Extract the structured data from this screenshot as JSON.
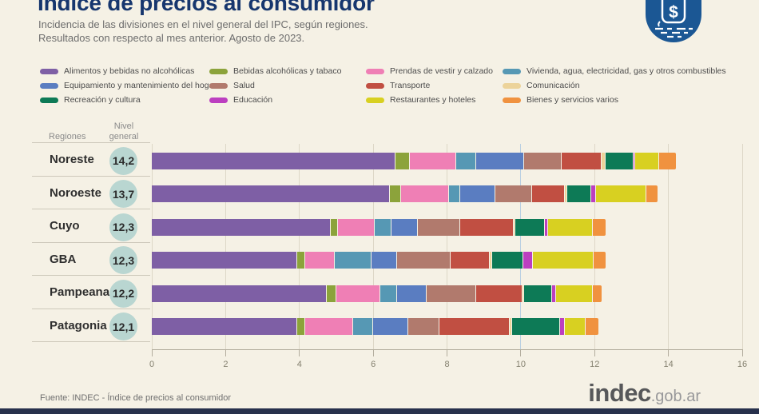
{
  "header": {
    "title": "Índice de precios al consumidor",
    "subtitle_line1": "Incidencia de las divisiones en el nivel general del IPC, según regiones.",
    "subtitle_line2": "Resultados con respecto al mes anterior. Agosto de 2023.",
    "badge_icon": "peso-sign-badge",
    "badge_color": "#1b5794"
  },
  "chart_data": {
    "type": "stacked-bar-horizontal",
    "title": "Incidencia de las divisiones en el nivel general del IPC, según regiones",
    "x_axis": {
      "ticks": [
        0,
        2,
        4,
        6,
        8,
        10,
        12,
        14,
        16
      ],
      "max": 16,
      "grid": true
    },
    "column_headers": {
      "regiones": "Regiones",
      "nivel_general": "Nivel general"
    },
    "divisions": [
      {
        "key": "alimentos",
        "label": "Alimentos y bebidas no alcohólicas",
        "color": "#7e5fa5"
      },
      {
        "key": "bebidas-alcoholicas",
        "label": "Bebidas alcohólicas y tabaco",
        "color": "#8ca33b"
      },
      {
        "key": "prendas",
        "label": "Prendas de vestir y calzado",
        "color": "#ef7fb5"
      },
      {
        "key": "vivienda",
        "label": "Vivienda, agua, electricidad, gas y otros combustibles",
        "color": "#5698b4"
      },
      {
        "key": "equipamiento",
        "label": "Equipamiento y mantenimiento del hogar",
        "color": "#5a7dc1"
      },
      {
        "key": "salud",
        "label": "Salud",
        "color": "#b17a6d"
      },
      {
        "key": "transporte",
        "label": "Transporte",
        "color": "#c14f42"
      },
      {
        "key": "comunicacion",
        "label": "Comunicación",
        "color": "#ecd39a"
      },
      {
        "key": "recreacion",
        "label": "Recreación y cultura",
        "color": "#0d7a56"
      },
      {
        "key": "educacion",
        "label": "Educación",
        "color": "#bc3fc0"
      },
      {
        "key": "restaurantes",
        "label": "Restaurantes y hoteles",
        "color": "#d8d021"
      },
      {
        "key": "bienes-varios",
        "label": "Bienes y servicios varios",
        "color": "#f0923f"
      }
    ],
    "regions": [
      {
        "name": "Noreste",
        "nivel_general_label": "14,2",
        "nivel_general": 14.2,
        "values": [
          6.6,
          0.4,
          1.25,
          0.55,
          1.3,
          1.0,
          1.1,
          0.1,
          0.75,
          0.05,
          0.65,
          0.45
        ]
      },
      {
        "name": "Noroeste",
        "nivel_general_label": "13,7",
        "nivel_general": 13.7,
        "values": [
          6.45,
          0.3,
          1.3,
          0.3,
          0.95,
          1.0,
          0.9,
          0.07,
          0.65,
          0.13,
          1.35,
          0.3
        ]
      },
      {
        "name": "Cuyo",
        "nivel_general_label": "12,3",
        "nivel_general": 12.3,
        "values": [
          4.85,
          0.2,
          1.0,
          0.45,
          0.7,
          1.15,
          1.45,
          0.05,
          0.8,
          0.1,
          1.2,
          0.35
        ]
      },
      {
        "name": "GBA",
        "nivel_general_label": "12,3",
        "nivel_general": 12.3,
        "values": [
          3.95,
          0.2,
          0.8,
          1.0,
          0.7,
          1.45,
          1.05,
          0.07,
          0.85,
          0.25,
          1.65,
          0.33
        ]
      },
      {
        "name": "Pampeana",
        "nivel_general_label": "12,2",
        "nivel_general": 12.2,
        "values": [
          4.75,
          0.25,
          1.2,
          0.45,
          0.8,
          1.35,
          1.25,
          0.05,
          0.75,
          0.1,
          1.0,
          0.25
        ]
      },
      {
        "name": "Patagonia",
        "nivel_general_label": "12,1",
        "nivel_general": 12.1,
        "values": [
          3.95,
          0.2,
          1.3,
          0.55,
          0.95,
          0.85,
          1.9,
          0.07,
          1.3,
          0.13,
          0.55,
          0.35
        ]
      }
    ],
    "nivel_general_circle_color": "#b9d6d1",
    "legend_position": "top"
  },
  "footer": {
    "source": "Fuente: INDEC - Índice de precios al consumidor",
    "logo_main": "indec",
    "logo_suffix": ".gob.ar"
  }
}
